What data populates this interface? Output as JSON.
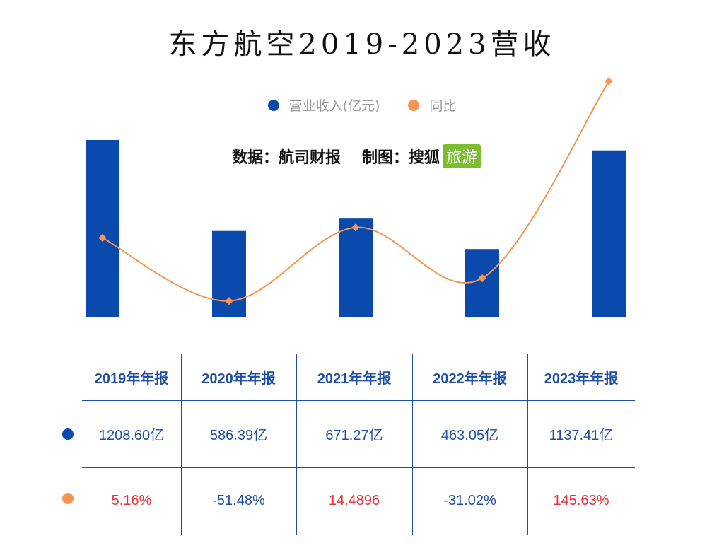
{
  "title": "东方航空2019-2023营收",
  "legend": [
    {
      "label": "营业收入(亿元)",
      "color": "#0a4aad"
    },
    {
      "label": "同比",
      "color": "#f79550"
    }
  ],
  "credit": {
    "source": "数据：航司财报",
    "maker": "制图：搜狐",
    "brand": "旅游"
  },
  "colors": {
    "bar": "#0a4aad",
    "line": "#f79550",
    "table_text": "#1f4fa3",
    "positive": "#e8313a"
  },
  "chart_data": {
    "type": "bar",
    "categories": [
      "2019年年报",
      "2020年年报",
      "2021年年报",
      "2022年年报",
      "2023年年报"
    ],
    "series": [
      {
        "name": "营业收入(亿元)",
        "type": "bar",
        "values": [
          1208.6,
          586.39,
          671.27,
          463.05,
          1137.41
        ]
      },
      {
        "name": "同比",
        "type": "line",
        "values": [
          5.16,
          -51.48,
          14.4896,
          -31.02,
          145.63
        ]
      }
    ],
    "grid": false,
    "legend_position": "top"
  },
  "table": {
    "headers": [
      "2019年年报",
      "2020年年报",
      "2021年年报",
      "2022年年报",
      "2023年年报"
    ],
    "revenue": [
      "1208.60亿",
      "586.39亿",
      "671.27亿",
      "463.05亿",
      "1137.41亿"
    ],
    "yoy": [
      "5.16%",
      "-51.48%",
      "14.4896",
      "-31.02%",
      "145.63%"
    ]
  }
}
